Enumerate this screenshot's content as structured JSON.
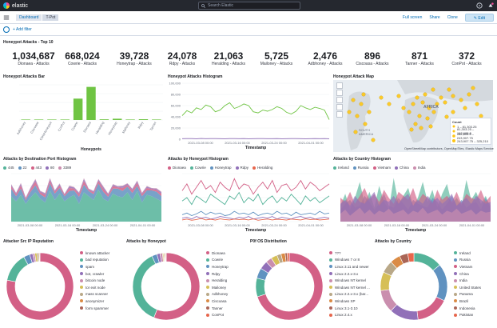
{
  "app": {
    "name": "elastic",
    "search_placeholder": "Search Elastic"
  },
  "breadcrumbs": [
    "Dashboard",
    "T-Pot"
  ],
  "actions": {
    "fullscreen": "Full screen",
    "share": "Share",
    "clone": "Clone",
    "edit": "Edit"
  },
  "filter": {
    "add": "+ Add filter"
  },
  "top10": {
    "title": "Honeypot Attacks - Top 10",
    "metrics": [
      {
        "value": "1,034,687",
        "label": "Dionaea - Attacks"
      },
      {
        "value": "668,024",
        "label": "Cowrie - Attacks"
      },
      {
        "value": "39,728",
        "label": "Honeytrap - Attacks"
      },
      {
        "value": "24,078",
        "label": "Rdpy - Attacks"
      },
      {
        "value": "21,063",
        "label": "Heralding - Attacks"
      },
      {
        "value": "5,725",
        "label": "Mailoney - Attacks"
      },
      {
        "value": "2,476",
        "label": "Adbhoney - Attacks"
      },
      {
        "value": "896",
        "label": "Ciscoasa - Attacks"
      },
      {
        "value": "871",
        "label": "Tanner - Attacks"
      },
      {
        "value": "372",
        "label": "ConPot - Attacks"
      }
    ]
  },
  "panels": {
    "bar": "Honeypot Attacks Bar",
    "histogram": "Honeypot Attacks Histogram",
    "map": "Honeypot Attack Map",
    "port": "Attacks by Destination Port Histogram",
    "byhoneypot": "Attacks by Honeypot Histogram",
    "country": "Attacks by Country Histogram",
    "srcip": "Attacker Src IP Reputation",
    "donut_honeypot": "Attacks by Honeypot",
    "p0f": "P0f OS Distribution",
    "donut_country": "Attacks by Country"
  },
  "map": {
    "labels": [
      "AFRICA",
      "SOUTH AMERICA"
    ],
    "legend_title": "Count",
    "legend": [
      "1 – 81,303.25",
      "81,303.25 – 162,605.5",
      "162,605.5 – 243,907.75",
      "243,907.75 – 325,210"
    ],
    "attribution": "OpenStreetMap contributors, OpenMapTiles, Elastic Maps Service"
  },
  "chart_data": [
    {
      "type": "bar",
      "title": "Honeypot Attacks Bar",
      "xlabel": "Honeypots",
      "ylabel": "",
      "categories": [
        "Adbhoney",
        "Ciscoasa",
        "CitrixHoneypot",
        "ConPot",
        "Cowrie",
        "Dionaea",
        "Heralding",
        "Honeytrap",
        "Mailoney",
        "Rdpy",
        "Tanner"
      ],
      "values": [
        2476,
        896,
        300,
        372,
        668024,
        1034687,
        21063,
        39728,
        5725,
        24078,
        871
      ],
      "ylim": [
        0,
        1100000
      ],
      "color": "#6fc443"
    },
    {
      "type": "line",
      "title": "Honeypot Attacks Histogram",
      "xlabel": "Timestamp",
      "ylabel": "",
      "x_ticks": [
        "2021-03-08 00:00",
        "2021-03-16 00:00",
        "2021-03-24 00:00",
        "2021-04-01 00:00"
      ],
      "y_ticks": [
        0,
        20000,
        40000,
        60000,
        80000,
        100000
      ],
      "ylim": [
        0,
        100000
      ],
      "series": [
        {
          "name": "Dionaea",
          "color": "#6fc443",
          "values": [
            42000,
            51000,
            47000,
            56000,
            53000,
            61000,
            58000,
            49000,
            52000,
            60000,
            65000,
            55000,
            58000,
            63000,
            60000,
            49000,
            47000,
            52000,
            50000,
            53000,
            58000,
            55000,
            48000,
            45000,
            50000,
            60000,
            56000,
            53000,
            57000,
            55000,
            52000,
            35000
          ]
        },
        {
          "name": "Cowrie",
          "color": "#9170b8",
          "values": [
            1000,
            1200,
            1100,
            900,
            1300,
            1000,
            1200,
            1100,
            1000,
            900,
            1100,
            1200,
            1000,
            1100,
            900,
            1000,
            1200,
            1100,
            1000,
            1000,
            1100,
            900,
            1000,
            1200,
            1100,
            1000,
            900,
            1000,
            1100,
            1000,
            1200,
            900
          ]
        }
      ]
    },
    {
      "type": "area",
      "title": "Attacks by Destination Port Histogram",
      "xlabel": "Timestamp",
      "x_ticks": [
        "2021-03-08 00:00",
        "2021-03-16 00:00",
        "2021-03-24 00:00",
        "2021-04-01 00:00"
      ],
      "series": [
        {
          "name": "445",
          "color": "#54b399",
          "values": [
            200,
            160,
            210,
            140,
            190,
            230,
            180,
            150,
            240,
            170,
            220,
            160,
            190,
            210,
            140,
            230,
            200,
            170,
            250,
            180,
            160,
            220,
            200,
            190,
            230,
            170,
            240,
            150,
            210,
            200,
            180,
            160
          ]
        },
        {
          "name": "22",
          "color": "#6092c0",
          "values": [
            60,
            40,
            50,
            30,
            45,
            55,
            35,
            40,
            60,
            50,
            45,
            40,
            50,
            35,
            55,
            60,
            40,
            45,
            50,
            55,
            35,
            40,
            60,
            50,
            45,
            55,
            40,
            50,
            35,
            45,
            55,
            40
          ]
        },
        {
          "name": "443",
          "color": "#d36086",
          "values": [
            20,
            15,
            25,
            10,
            20,
            30,
            15,
            20,
            25,
            15,
            20,
            10,
            25,
            15,
            20,
            30,
            10,
            15,
            20,
            25,
            15,
            20,
            10,
            25,
            15,
            20,
            25,
            15,
            20,
            10,
            15,
            20
          ]
        },
        {
          "name": "80",
          "color": "#9170b8",
          "values": [
            10,
            8,
            12,
            6,
            10,
            14,
            8,
            10,
            12,
            8,
            10,
            6,
            12,
            8,
            10,
            14,
            6,
            8,
            10,
            12,
            8,
            10,
            6,
            12,
            8,
            10,
            12,
            8,
            10,
            6,
            8,
            10
          ]
        },
        {
          "name": "3389",
          "color": "#ca8eae",
          "values": [
            5,
            4,
            6,
            3,
            5,
            7,
            4,
            5,
            6,
            4,
            5,
            3,
            6,
            4,
            5,
            7,
            3,
            4,
            5,
            6,
            4,
            5,
            3,
            6,
            4,
            5,
            6,
            4,
            5,
            3,
            4,
            5
          ]
        }
      ]
    },
    {
      "type": "line",
      "title": "Attacks by Honeypot Histogram",
      "xlabel": "Timestamp",
      "x_ticks": [
        "2021-03-08 00:00",
        "2021-03-16 00:00",
        "2021-03-24 00:00",
        "2021-04-01 00:00"
      ],
      "series": [
        {
          "name": "Dionaea",
          "color": "#d36086",
          "values": [
            180,
            220,
            160,
            200,
            240,
            190,
            210,
            170,
            230,
            200,
            180,
            250,
            190,
            220,
            210,
            160,
            200,
            230,
            190,
            240,
            170,
            210,
            220,
            180,
            200,
            240,
            190,
            230,
            210,
            180,
            200,
            220
          ]
        },
        {
          "name": "Cowrie",
          "color": "#54b399",
          "values": [
            120,
            140,
            100,
            150,
            130,
            110,
            160,
            140,
            120,
            100,
            150,
            130,
            170,
            110,
            140,
            120,
            160,
            100,
            130,
            150,
            110,
            140,
            120,
            160,
            130,
            100,
            150,
            120,
            140,
            110,
            130,
            150
          ]
        },
        {
          "name": "Honeytrap",
          "color": "#6092c0",
          "values": [
            40,
            50,
            35,
            45,
            60,
            40,
            55,
            45,
            50,
            35,
            40,
            60,
            45,
            50,
            40,
            55,
            35,
            45,
            50,
            40,
            60,
            45,
            50,
            35,
            55,
            40,
            45,
            50,
            40,
            60,
            45,
            50
          ]
        },
        {
          "name": "Rdpy",
          "color": "#9170b8",
          "values": [
            20,
            25,
            15,
            30,
            20,
            25,
            15,
            20,
            30,
            25,
            20,
            15,
            25,
            20,
            30,
            15,
            20,
            25,
            20,
            30,
            15,
            25,
            20,
            15,
            25,
            30,
            20,
            25,
            15,
            20,
            25,
            20
          ]
        },
        {
          "name": "Heralding",
          "color": "#e7664c",
          "values": [
            10,
            15,
            8,
            12,
            18,
            10,
            14,
            9,
            16,
            12,
            10,
            15,
            12,
            14,
            10,
            16,
            8,
            12,
            15,
            10,
            14,
            12,
            9,
            15,
            12,
            10,
            16,
            12,
            14,
            10,
            12,
            15
          ]
        }
      ]
    },
    {
      "type": "area",
      "title": "Attacks by Country Histogram",
      "xlabel": "Timestamp",
      "x_ticks": [
        "2021-03-08 00:00",
        "2021-03-16 00:00",
        "2021-03-24 00:00",
        "2021-04-01 00:00"
      ],
      "series": [
        {
          "name": "Ireland",
          "color": "#54b399",
          "values": [
            80,
            140,
            60,
            120,
            200,
            90,
            150,
            70,
            180,
            100,
            60,
            220,
            90,
            130,
            170,
            80,
            120,
            200,
            100,
            160,
            70,
            140,
            190,
            90,
            120,
            80,
            210,
            110,
            150,
            90,
            130,
            60
          ]
        },
        {
          "name": "Russia",
          "color": "#6092c0",
          "values": [
            60,
            90,
            110,
            70,
            80,
            130,
            100,
            60,
            90,
            140,
            80,
            70,
            120,
            90,
            60,
            110,
            90,
            80,
            70,
            120,
            100,
            60,
            90,
            130,
            80,
            110,
            70,
            90,
            100,
            60,
            120,
            80
          ]
        },
        {
          "name": "Vietnam",
          "color": "#d36086",
          "values": [
            120,
            100,
            150,
            90,
            130,
            170,
            110,
            140,
            100,
            160,
            120,
            90,
            150,
            130,
            110,
            170,
            100,
            140,
            120,
            90,
            160,
            110,
            130,
            100,
            150,
            90,
            140,
            120,
            110,
            160,
            100,
            130
          ]
        },
        {
          "name": "China",
          "color": "#9170b8",
          "values": [
            90,
            110,
            80,
            130,
            100,
            90,
            120,
            150,
            80,
            110,
            100,
            130,
            90,
            120,
            140,
            80,
            110,
            90,
            130,
            100,
            120,
            90,
            110,
            140,
            80,
            100,
            120,
            90,
            130,
            110,
            90,
            100
          ]
        },
        {
          "name": "India",
          "color": "#ca8eae",
          "values": [
            40,
            60,
            30,
            50,
            70,
            40,
            60,
            35,
            55,
            45,
            65,
            40,
            50,
            60,
            35,
            55,
            45,
            70,
            40,
            50,
            60,
            35,
            55,
            45,
            65,
            40,
            50,
            60,
            35,
            55,
            45,
            50
          ]
        }
      ]
    },
    {
      "type": "pie",
      "title": "Attacker Src IP Reputation",
      "labels": [
        "known attacker",
        "bad reputation",
        "spam",
        "bot, crawler",
        "bitcoin node",
        "tor exit node",
        "mass scanner",
        "anonymizer",
        "form spammer"
      ],
      "values": [
        78,
        14,
        3,
        1.5,
        1,
        1,
        0.8,
        0.4,
        0.3
      ],
      "colors": [
        "#d36086",
        "#54b399",
        "#6092c0",
        "#9170b8",
        "#ca8eae",
        "#d6bf57",
        "#b9a888",
        "#da8b45",
        "#aa6556"
      ]
    },
    {
      "type": "pie",
      "title": "Attacks by Honeypot",
      "labels": [
        "Dionaea",
        "Cowrie",
        "Honeytrap",
        "Rdpy",
        "Heralding",
        "Mailoney",
        "Adbhoney",
        "Ciscoasa",
        "Tanner",
        "ConPot"
      ],
      "values": [
        56,
        37,
        2.5,
        1.5,
        1.2,
        0.5,
        0.4,
        0.4,
        0.3,
        0.2
      ],
      "colors": [
        "#d36086",
        "#54b399",
        "#6092c0",
        "#9170b8",
        "#ca8eae",
        "#d6bf57",
        "#b9a888",
        "#da8b45",
        "#aa6556",
        "#e7664c"
      ]
    },
    {
      "type": "pie",
      "title": "P0f OS Distribution",
      "labels": [
        "???",
        "Windows 7 or 8",
        "Linux 3.11 and newer",
        "Linux 2.2.x-3.x",
        "Windows NT kernel",
        "Windows NT kernel ...",
        "Linux 2.2.x-3.x (bar...",
        "Windows XP",
        "Linux 3.1-3.10",
        "Linux 2.4.x"
      ],
      "values": [
        70,
        9,
        5,
        4,
        3,
        3,
        2,
        2,
        1,
        1
      ],
      "colors": [
        "#d36086",
        "#54b399",
        "#6092c0",
        "#9170b8",
        "#ca8eae",
        "#d6bf57",
        "#b9a888",
        "#da8b45",
        "#aa6556",
        "#e7664c"
      ]
    },
    {
      "type": "pie",
      "title": "Attacks by Country",
      "labels": [
        "Ireland",
        "Russia",
        "Vietnam",
        "China",
        "India",
        "United States",
        "Panama",
        "Brazil",
        "Indonesia",
        "Pakistan"
      ],
      "values": [
        14,
        18,
        16,
        14,
        11,
        9,
        6,
        5,
        4,
        3
      ],
      "colors": [
        "#54b399",
        "#6092c0",
        "#d36086",
        "#9170b8",
        "#ca8eae",
        "#d6bf57",
        "#b9a888",
        "#da8b45",
        "#aa6556",
        "#e7664c"
      ]
    }
  ]
}
